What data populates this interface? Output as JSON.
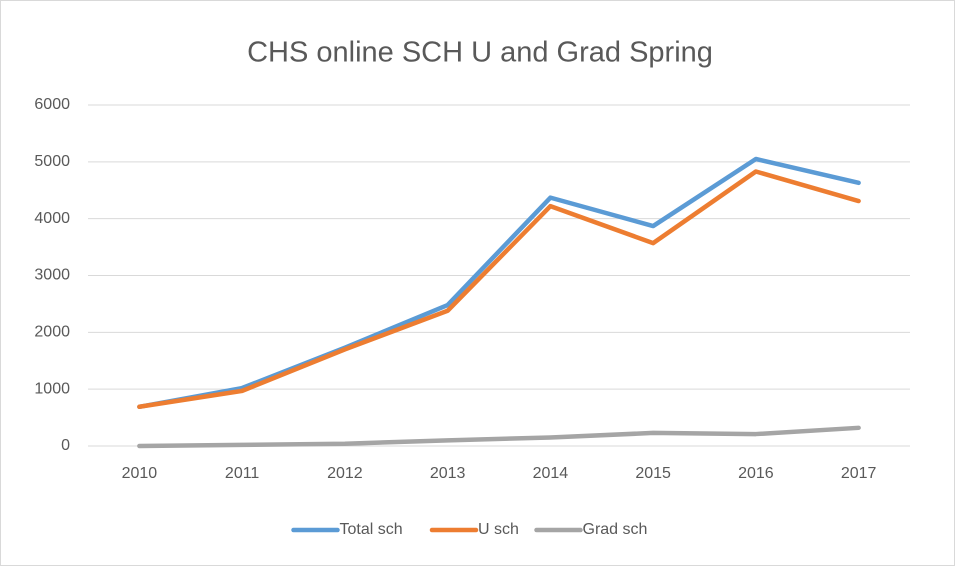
{
  "chart_data": {
    "type": "line",
    "title": "CHS online SCH U and Grad Spring",
    "categories": [
      "2010",
      "2011",
      "2012",
      "2013",
      "2014",
      "2015",
      "2016",
      "2017"
    ],
    "series": [
      {
        "name": "Total sch",
        "color": "#5b9bd5",
        "values": [
          690,
          1020,
          1730,
          2480,
          4370,
          3870,
          5050,
          4630
        ]
      },
      {
        "name": "U sch",
        "color": "#ed7d31",
        "values": [
          690,
          970,
          1700,
          2380,
          4220,
          3570,
          4830,
          4310
        ]
      },
      {
        "name": "Grad sch",
        "color": "#a5a5a5",
        "values": [
          0,
          20,
          40,
          100,
          150,
          230,
          210,
          320
        ]
      }
    ],
    "ylim": [
      0,
      6000
    ],
    "yticks": [
      0,
      1000,
      2000,
      3000,
      4000,
      5000,
      6000
    ],
    "grid": true,
    "legend": "bottom"
  }
}
